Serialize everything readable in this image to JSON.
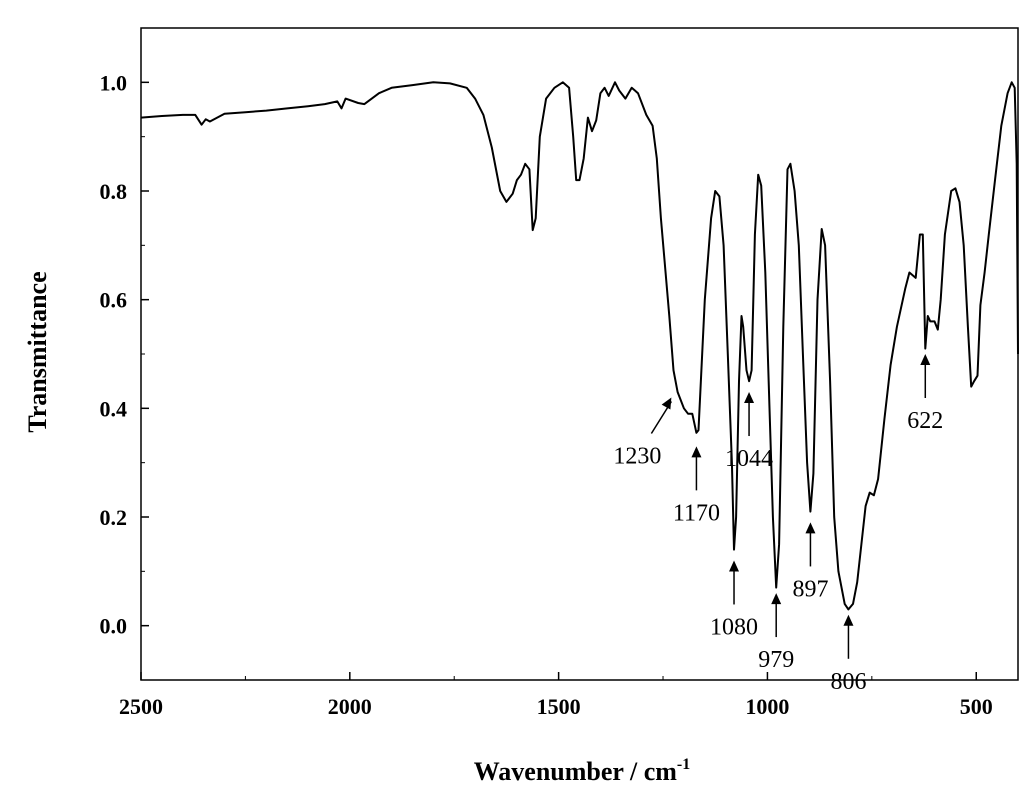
{
  "chart_data": {
    "type": "line",
    "xlabel": "Wavenumber / cm",
    "xlabel_sup": "-1",
    "ylabel": "Transmittance",
    "xlim": [
      2500,
      400
    ],
    "ylim": [
      -0.1,
      1.1
    ],
    "x_reversed": true,
    "x_ticks": [
      2500,
      2000,
      1500,
      1000,
      500
    ],
    "x_tick_labels": [
      "2500",
      "2000",
      "1500",
      "1000",
      "500"
    ],
    "y_ticks": [
      0.0,
      0.2,
      0.4,
      0.6,
      0.8,
      1.0
    ],
    "y_tick_labels": [
      "0.0",
      "0.2",
      "0.4",
      "0.6",
      "0.8",
      "1.0"
    ],
    "grid": false,
    "series": [
      {
        "color": "#000000",
        "points": [
          [
            2500,
            0.935
          ],
          [
            2450,
            0.938
          ],
          [
            2400,
            0.94
          ],
          [
            2370,
            0.94
          ],
          [
            2355,
            0.922
          ],
          [
            2345,
            0.932
          ],
          [
            2335,
            0.928
          ],
          [
            2300,
            0.942
          ],
          [
            2250,
            0.945
          ],
          [
            2200,
            0.948
          ],
          [
            2150,
            0.952
          ],
          [
            2100,
            0.956
          ],
          [
            2060,
            0.96
          ],
          [
            2030,
            0.965
          ],
          [
            2020,
            0.952
          ],
          [
            2010,
            0.97
          ],
          [
            1980,
            0.962
          ],
          [
            1965,
            0.96
          ],
          [
            1930,
            0.98
          ],
          [
            1900,
            0.99
          ],
          [
            1850,
            0.995
          ],
          [
            1800,
            1.0
          ],
          [
            1760,
            0.998
          ],
          [
            1720,
            0.99
          ],
          [
            1700,
            0.97
          ],
          [
            1680,
            0.94
          ],
          [
            1660,
            0.88
          ],
          [
            1640,
            0.8
          ],
          [
            1625,
            0.78
          ],
          [
            1610,
            0.795
          ],
          [
            1600,
            0.82
          ],
          [
            1590,
            0.83
          ],
          [
            1580,
            0.85
          ],
          [
            1570,
            0.84
          ],
          [
            1562,
            0.728
          ],
          [
            1555,
            0.75
          ],
          [
            1545,
            0.9
          ],
          [
            1530,
            0.97
          ],
          [
            1510,
            0.99
          ],
          [
            1490,
            1.0
          ],
          [
            1475,
            0.99
          ],
          [
            1465,
            0.9
          ],
          [
            1458,
            0.82
          ],
          [
            1450,
            0.82
          ],
          [
            1440,
            0.86
          ],
          [
            1430,
            0.935
          ],
          [
            1420,
            0.91
          ],
          [
            1410,
            0.93
          ],
          [
            1400,
            0.98
          ],
          [
            1390,
            0.99
          ],
          [
            1380,
            0.975
          ],
          [
            1365,
            1.0
          ],
          [
            1355,
            0.985
          ],
          [
            1340,
            0.97
          ],
          [
            1325,
            0.99
          ],
          [
            1310,
            0.98
          ],
          [
            1290,
            0.94
          ],
          [
            1275,
            0.92
          ],
          [
            1265,
            0.86
          ],
          [
            1255,
            0.75
          ],
          [
            1245,
            0.66
          ],
          [
            1235,
            0.57
          ],
          [
            1225,
            0.47
          ],
          [
            1215,
            0.43
          ],
          [
            1200,
            0.4
          ],
          [
            1190,
            0.39
          ],
          [
            1180,
            0.39
          ],
          [
            1170,
            0.355
          ],
          [
            1165,
            0.36
          ],
          [
            1150,
            0.6
          ],
          [
            1135,
            0.75
          ],
          [
            1125,
            0.8
          ],
          [
            1115,
            0.79
          ],
          [
            1105,
            0.7
          ],
          [
            1095,
            0.5
          ],
          [
            1085,
            0.3
          ],
          [
            1080,
            0.14
          ],
          [
            1075,
            0.2
          ],
          [
            1068,
            0.45
          ],
          [
            1062,
            0.57
          ],
          [
            1058,
            0.55
          ],
          [
            1050,
            0.47
          ],
          [
            1044,
            0.45
          ],
          [
            1038,
            0.47
          ],
          [
            1030,
            0.72
          ],
          [
            1022,
            0.83
          ],
          [
            1015,
            0.81
          ],
          [
            1005,
            0.65
          ],
          [
            995,
            0.4
          ],
          [
            987,
            0.2
          ],
          [
            979,
            0.07
          ],
          [
            972,
            0.15
          ],
          [
            962,
            0.55
          ],
          [
            952,
            0.84
          ],
          [
            945,
            0.85
          ],
          [
            935,
            0.8
          ],
          [
            925,
            0.7
          ],
          [
            915,
            0.5
          ],
          [
            905,
            0.3
          ],
          [
            897,
            0.21
          ],
          [
            890,
            0.28
          ],
          [
            880,
            0.6
          ],
          [
            870,
            0.73
          ],
          [
            862,
            0.7
          ],
          [
            850,
            0.45
          ],
          [
            840,
            0.2
          ],
          [
            830,
            0.1
          ],
          [
            815,
            0.04
          ],
          [
            806,
            0.03
          ],
          [
            795,
            0.04
          ],
          [
            785,
            0.08
          ],
          [
            775,
            0.15
          ],
          [
            765,
            0.22
          ],
          [
            755,
            0.245
          ],
          [
            745,
            0.24
          ],
          [
            735,
            0.27
          ],
          [
            720,
            0.38
          ],
          [
            705,
            0.48
          ],
          [
            690,
            0.55
          ],
          [
            670,
            0.62
          ],
          [
            660,
            0.65
          ],
          [
            645,
            0.64
          ],
          [
            635,
            0.72
          ],
          [
            628,
            0.72
          ],
          [
            622,
            0.51
          ],
          [
            616,
            0.57
          ],
          [
            610,
            0.56
          ],
          [
            600,
            0.56
          ],
          [
            592,
            0.545
          ],
          [
            585,
            0.6
          ],
          [
            575,
            0.72
          ],
          [
            560,
            0.8
          ],
          [
            550,
            0.805
          ],
          [
            540,
            0.78
          ],
          [
            530,
            0.7
          ],
          [
            520,
            0.55
          ],
          [
            512,
            0.44
          ],
          [
            505,
            0.45
          ],
          [
            497,
            0.46
          ],
          [
            490,
            0.59
          ],
          [
            480,
            0.65
          ],
          [
            470,
            0.72
          ],
          [
            455,
            0.82
          ],
          [
            440,
            0.92
          ],
          [
            425,
            0.98
          ],
          [
            415,
            1.0
          ],
          [
            408,
            0.99
          ],
          [
            403,
            0.85
          ],
          [
            400,
            0.5
          ]
        ]
      }
    ],
    "annotations": [
      {
        "label": "1230",
        "target": [
          1230,
          0.42
        ],
        "dir": "diag"
      },
      {
        "label": "1170",
        "target": [
          1170,
          0.33
        ],
        "dir": "up"
      },
      {
        "label": "1044",
        "target": [
          1044,
          0.43
        ],
        "dir": "up"
      },
      {
        "label": "1080",
        "target": [
          1080,
          0.12
        ],
        "dir": "up"
      },
      {
        "label": "979",
        "target": [
          979,
          0.06
        ],
        "dir": "up"
      },
      {
        "label": "897",
        "target": [
          897,
          0.19
        ],
        "dir": "up"
      },
      {
        "label": "806",
        "target": [
          806,
          0.02
        ],
        "dir": "up"
      },
      {
        "label": "622",
        "target": [
          622,
          0.5
        ],
        "dir": "up"
      }
    ]
  }
}
